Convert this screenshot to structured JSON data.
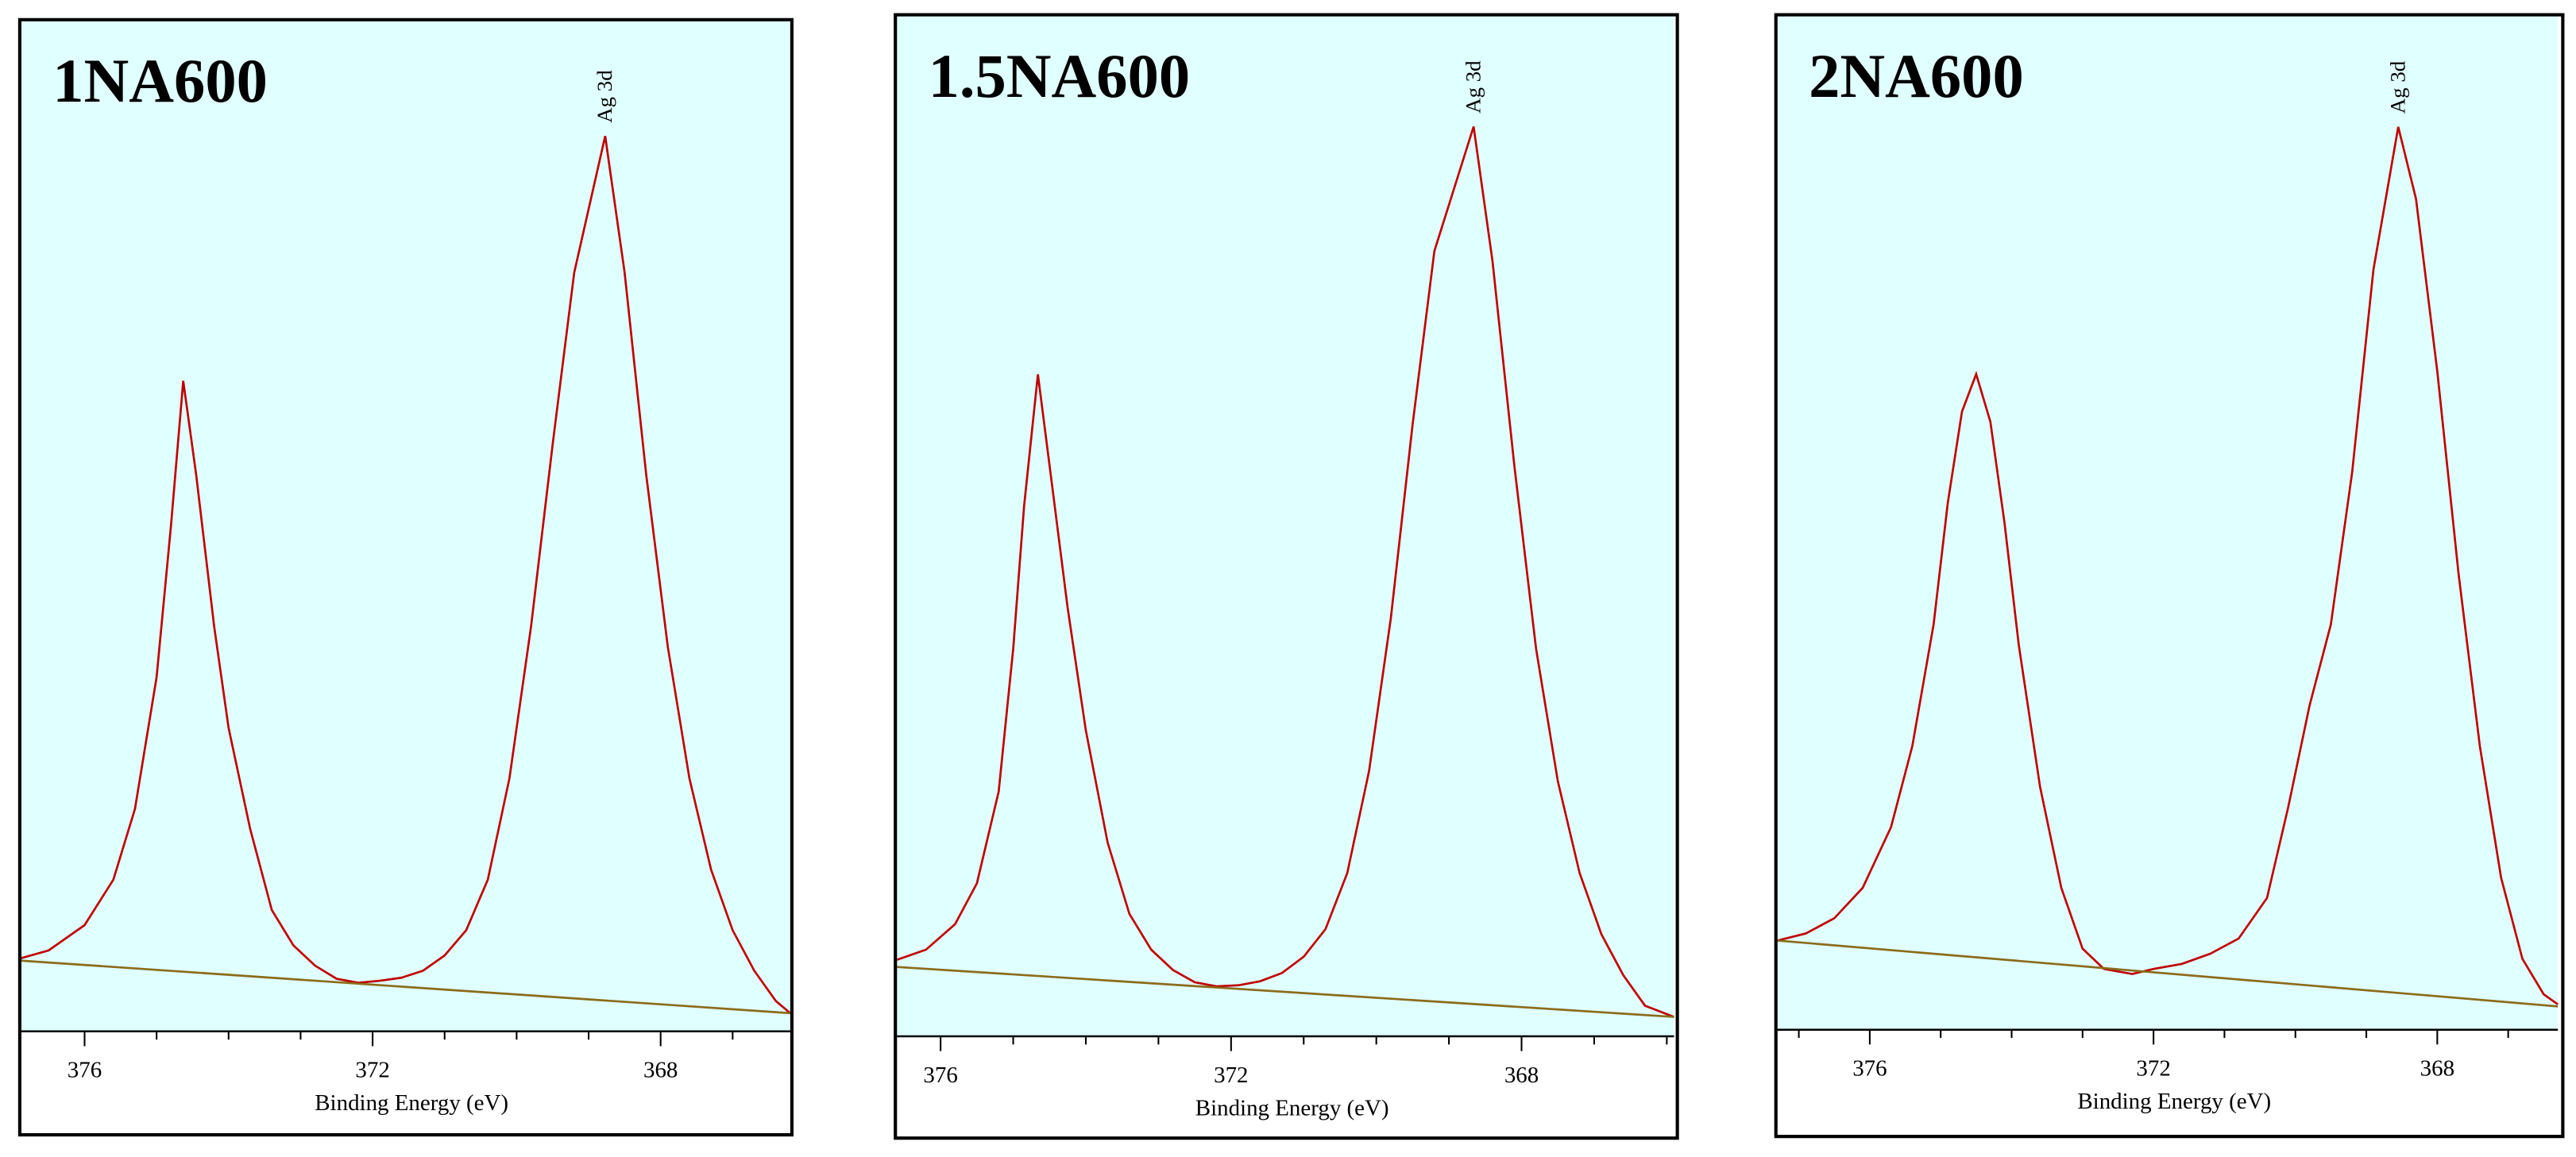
{
  "chart_data": [
    {
      "type": "line",
      "title": "1NA600",
      "annotation": "Ag 3d",
      "x_label": "Binding Energy (eV)",
      "xlim": [
        376.9,
        366.2
      ],
      "ylim": [
        0,
        100
      ],
      "xticks": [
        376,
        372,
        368
      ],
      "minor_xticks": [
        375,
        374,
        373,
        371,
        370,
        369,
        367
      ],
      "series": [
        {
          "color": "#c00000",
          "x": [
            376.9,
            376.5,
            376.0,
            375.6,
            375.3,
            375.0,
            374.8,
            374.63,
            374.45,
            374.2,
            374.0,
            373.7,
            373.4,
            373.1,
            372.8,
            372.5,
            372.2,
            371.9,
            371.6,
            371.3,
            371.0,
            370.7,
            370.4,
            370.1,
            369.8,
            369.5,
            369.2,
            368.77,
            368.5,
            368.2,
            367.9,
            367.6,
            367.3,
            367.0,
            366.7,
            366.4,
            366.2
          ],
          "values": [
            7.2,
            8.0,
            10.5,
            15,
            22,
            35,
            50,
            64.3,
            55,
            40,
            30,
            20,
            12,
            8.5,
            6.5,
            5.2,
            4.8,
            5.0,
            5.3,
            6,
            7.5,
            10,
            15,
            25,
            40,
            58,
            75,
            88.5,
            75,
            55,
            38,
            25,
            16,
            10,
            6,
            3,
            1.8
          ]
        },
        {
          "color": "#8b6b1a",
          "x": [
            376.9,
            366.2
          ],
          "values": [
            7.0,
            1.8
          ]
        }
      ]
    },
    {
      "type": "line",
      "title": "1.5NA600",
      "annotation": "Ag 3d",
      "x_label": "Binding Energy (eV)",
      "xlim": [
        376.6,
        365.9
      ],
      "ylim": [
        0,
        100
      ],
      "xticks": [
        376,
        372,
        368
      ],
      "minor_xticks": [
        375,
        374,
        373,
        371,
        370,
        369,
        367,
        366
      ],
      "series": [
        {
          "color": "#c00000",
          "x": [
            376.6,
            376.2,
            375.8,
            375.5,
            375.2,
            375.0,
            374.85,
            374.66,
            374.5,
            374.25,
            374.0,
            373.7,
            373.4,
            373.1,
            372.8,
            372.5,
            372.2,
            371.9,
            371.6,
            371.3,
            371.0,
            370.7,
            370.4,
            370.1,
            369.8,
            369.5,
            369.2,
            368.66,
            368.4,
            368.1,
            367.8,
            367.5,
            367.2,
            366.9,
            366.6,
            366.3,
            365.9
          ],
          "values": [
            7.5,
            8.5,
            11,
            15,
            24,
            38,
            52,
            64.9,
            56,
            42,
            30,
            19,
            12,
            8.5,
            6.5,
            5.3,
            4.9,
            5.0,
            5.4,
            6.2,
            7.8,
            10.5,
            16,
            26,
            41,
            60,
            77,
            89.2,
            76,
            56,
            38,
            25,
            16,
            10,
            6,
            3,
            1.9
          ]
        },
        {
          "color": "#8b6b1a",
          "x": [
            376.6,
            365.9
          ],
          "values": [
            6.8,
            1.9
          ]
        }
      ]
    },
    {
      "type": "line",
      "title": "2NA600",
      "annotation": "Ag 3d",
      "x_label": "Binding Energy (eV)",
      "xlim": [
        377.3,
        366.3
      ],
      "ylim": [
        0,
        100
      ],
      "xticks": [
        376,
        372,
        368
      ],
      "minor_xticks": [
        377,
        375,
        374,
        373,
        371,
        370,
        369,
        367
      ],
      "series": [
        {
          "color": "#c00000",
          "x": [
            377.3,
            376.9,
            376.5,
            376.1,
            375.7,
            375.4,
            375.1,
            374.9,
            374.7,
            374.5,
            374.3,
            374.1,
            373.9,
            373.6,
            373.3,
            373.0,
            372.7,
            372.3,
            372.0,
            371.6,
            371.2,
            370.8,
            370.4,
            370.1,
            369.8,
            369.5,
            369.2,
            368.9,
            368.55,
            368.3,
            368.0,
            367.7,
            367.4,
            367.1,
            366.8,
            366.5,
            366.3
          ],
          "values": [
            8.8,
            9.5,
            11,
            14,
            20,
            28,
            40,
            52,
            61,
            64.7,
            60,
            50,
            38,
            24,
            14,
            8,
            6,
            5.5,
            6,
            6.5,
            7.5,
            9,
            13,
            22,
            32,
            40,
            55,
            75,
            89.1,
            82,
            65,
            45,
            28,
            15,
            7,
            3.5,
            2.5
          ]
        },
        {
          "color": "#8b6b1a",
          "x": [
            377.3,
            366.3
          ],
          "values": [
            8.8,
            2.3
          ]
        }
      ]
    }
  ]
}
